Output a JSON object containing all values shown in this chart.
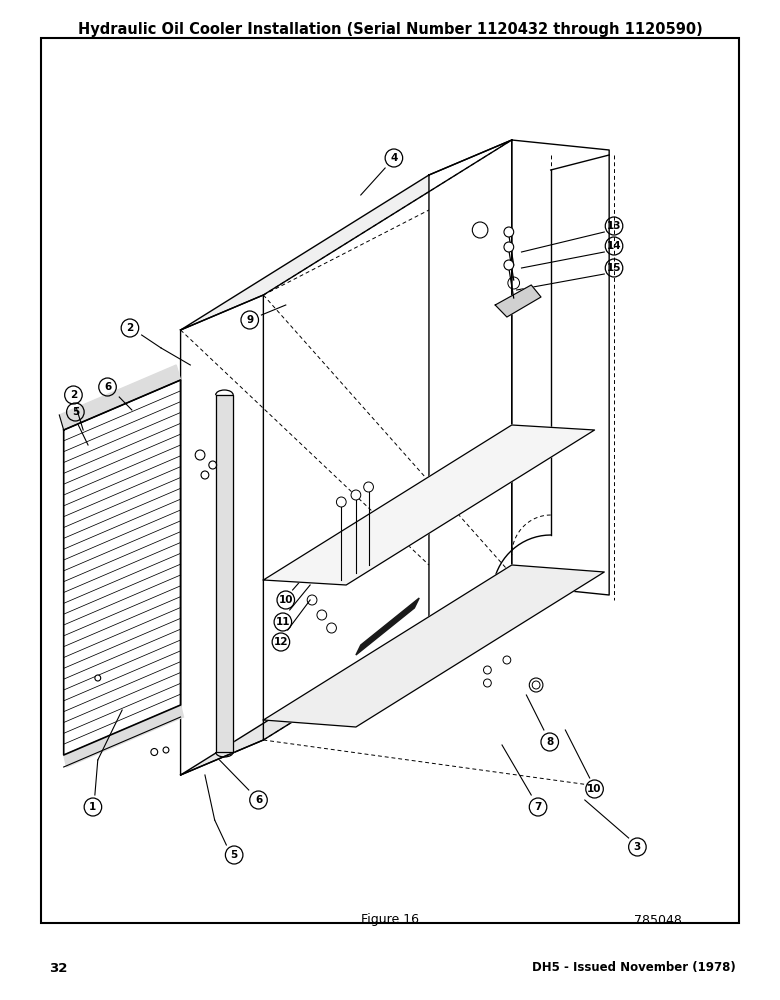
{
  "title": "Hydraulic Oil Cooler Installation (Serial Number 1120432 through 1120590)",
  "figure_label": "Figure 16",
  "part_number": "785048",
  "page_number": "32",
  "footer_right": "DH5 - Issued November (1978)",
  "background_color": "#ffffff",
  "line_color": "#000000",
  "title_fontsize": 10.5,
  "footer_fontsize": 8
}
